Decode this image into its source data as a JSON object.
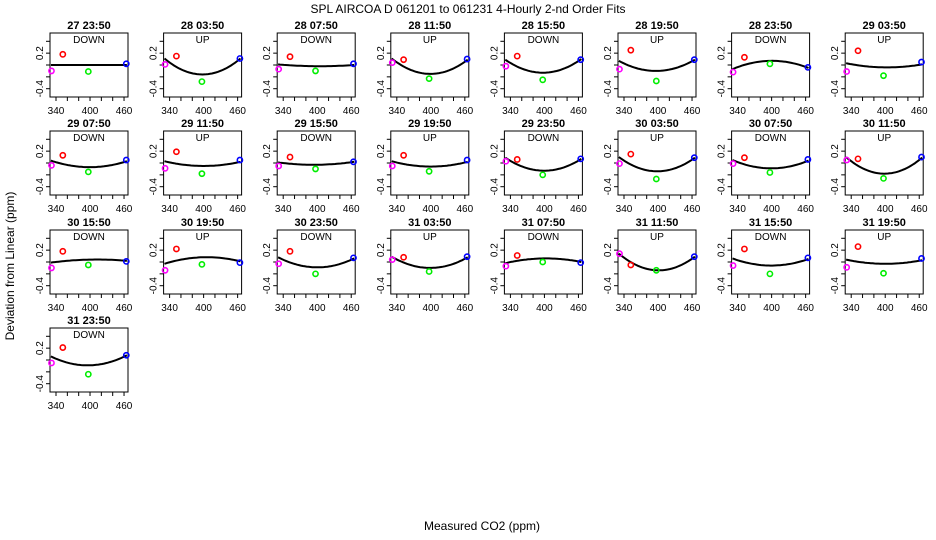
{
  "chart_data": {
    "type": "scatter",
    "title": "SPL   AIRCOA D   061201 to 061231   4-Hourly 2-nd Order Fits",
    "xlabel": "Measured CO2 (ppm)",
    "ylabel": "Deviation from Linear (ppm)",
    "xlim": [
      329.4,
      467
    ],
    "ylim": [
      -0.54,
      0.54
    ],
    "xticks": [
      340,
      360,
      380,
      400,
      420,
      440,
      460
    ],
    "xtick_labels": [
      "340",
      "400",
      "460"
    ],
    "xtick_label_values": [
      340,
      400,
      460
    ],
    "yticks": [
      0.4,
      0.2,
      0,
      -0.2,
      -0.4
    ],
    "ytick_labels": [
      "0.2",
      "-0.4"
    ],
    "ytick_label_values": [
      0.2,
      -0.4
    ],
    "point_x": [
      332,
      352,
      397,
      464
    ],
    "point_colors": [
      "#ff00ff",
      "#ff0000",
      "#00ee00",
      "#0000ff"
    ],
    "curve_x": [
      331,
      398,
      465
    ],
    "panels": [
      {
        "title": "27 23:50",
        "dir": "DOWN",
        "y": [
          -0.1,
          0.18,
          -0.11,
          0.02
        ],
        "curve": [
          0.0,
          0.0,
          0.0
        ]
      },
      {
        "title": "28 03:50",
        "dir": "UP",
        "y": [
          0.01,
          0.15,
          -0.28,
          0.11
        ],
        "curve": [
          0.11,
          -0.16,
          0.11
        ]
      },
      {
        "title": "28 07:50",
        "dir": "DOWN",
        "y": [
          -0.07,
          0.14,
          -0.1,
          0.02
        ],
        "curve": [
          0.01,
          -0.02,
          0.0
        ]
      },
      {
        "title": "28 11:50",
        "dir": "UP",
        "y": [
          0.04,
          0.09,
          -0.23,
          0.1
        ],
        "curve": [
          0.11,
          -0.15,
          0.09
        ]
      },
      {
        "title": "28 15:50",
        "dir": "DOWN",
        "y": [
          -0.02,
          0.15,
          -0.25,
          0.09
        ],
        "curve": [
          0.09,
          -0.13,
          0.1
        ]
      },
      {
        "title": "28 19:50",
        "dir": "UP",
        "y": [
          -0.07,
          0.25,
          -0.27,
          0.09
        ],
        "curve": [
          0.07,
          -0.1,
          0.09
        ]
      },
      {
        "title": "28 23:50",
        "dir": "DOWN",
        "y": [
          -0.12,
          0.13,
          0.02,
          -0.04
        ],
        "curve": [
          -0.07,
          0.07,
          -0.05
        ]
      },
      {
        "title": "29 03:50",
        "dir": "UP",
        "y": [
          -0.11,
          0.24,
          -0.18,
          0.05
        ],
        "curve": [
          0.03,
          -0.04,
          0.01
        ]
      },
      {
        "title": "29 07:50",
        "dir": "DOWN",
        "y": [
          -0.04,
          0.13,
          -0.15,
          0.05
        ],
        "curve": [
          0.04,
          -0.07,
          0.03
        ]
      },
      {
        "title": "29 11:50",
        "dir": "UP",
        "y": [
          -0.09,
          0.19,
          -0.18,
          0.05
        ],
        "curve": [
          0.03,
          -0.05,
          0.02
        ]
      },
      {
        "title": "29 15:50",
        "dir": "DOWN",
        "y": [
          -0.05,
          0.1,
          -0.1,
          0.02
        ],
        "curve": [
          0.01,
          -0.03,
          0.02
        ]
      },
      {
        "title": "29 19:50",
        "dir": "UP",
        "y": [
          -0.05,
          0.13,
          -0.14,
          0.05
        ],
        "curve": [
          0.03,
          -0.06,
          0.02
        ]
      },
      {
        "title": "29 23:50",
        "dir": "DOWN",
        "y": [
          0.03,
          0.06,
          -0.2,
          0.07
        ],
        "curve": [
          0.09,
          -0.13,
          0.07
        ]
      },
      {
        "title": "30 03:50",
        "dir": "UP",
        "y": [
          -0.01,
          0.15,
          -0.27,
          0.09
        ],
        "curve": [
          0.1,
          -0.14,
          0.09
        ]
      },
      {
        "title": "30 07:50",
        "dir": "DOWN",
        "y": [
          -0.01,
          0.09,
          -0.16,
          0.06
        ],
        "curve": [
          0.05,
          -0.09,
          0.04
        ]
      },
      {
        "title": "30 11:50",
        "dir": "UP",
        "y": [
          0.05,
          0.07,
          -0.26,
          0.1
        ],
        "curve": [
          0.1,
          -0.18,
          0.09
        ]
      },
      {
        "title": "30 15:50",
        "dir": "DOWN",
        "y": [
          -0.1,
          0.18,
          -0.05,
          0.01
        ],
        "curve": [
          -0.01,
          0.04,
          0.02
        ]
      },
      {
        "title": "30 19:50",
        "dir": "UP",
        "y": [
          -0.14,
          0.22,
          -0.04,
          -0.01
        ],
        "curve": [
          -0.03,
          0.08,
          0.01
        ]
      },
      {
        "title": "30 23:50",
        "dir": "DOWN",
        "y": [
          -0.03,
          0.18,
          -0.2,
          0.07
        ],
        "curve": [
          0.08,
          -0.09,
          0.06
        ]
      },
      {
        "title": "31 03:50",
        "dir": "UP",
        "y": [
          0.04,
          0.08,
          -0.16,
          0.09
        ],
        "curve": [
          0.09,
          -0.1,
          0.08
        ]
      },
      {
        "title": "31 07:50",
        "dir": "DOWN",
        "y": [
          -0.07,
          0.11,
          0.0,
          -0.01
        ],
        "curve": [
          -0.02,
          0.06,
          0.0
        ]
      },
      {
        "title": "31 11:50",
        "dir": "UP",
        "y": [
          0.14,
          -0.05,
          -0.14,
          0.09
        ],
        "curve": [
          0.14,
          -0.14,
          0.09
        ]
      },
      {
        "title": "31 15:50",
        "dir": "DOWN",
        "y": [
          -0.06,
          0.22,
          -0.2,
          0.07
        ],
        "curve": [
          0.06,
          -0.06,
          0.05
        ]
      },
      {
        "title": "31 19:50",
        "dir": "UP",
        "y": [
          -0.09,
          0.26,
          -0.19,
          0.06
        ],
        "curve": [
          0.04,
          -0.03,
          0.03
        ]
      },
      {
        "title": "31 23:50",
        "dir": "DOWN",
        "y": [
          -0.05,
          0.21,
          -0.24,
          0.08
        ],
        "curve": [
          0.06,
          -0.09,
          0.08
        ]
      }
    ]
  }
}
